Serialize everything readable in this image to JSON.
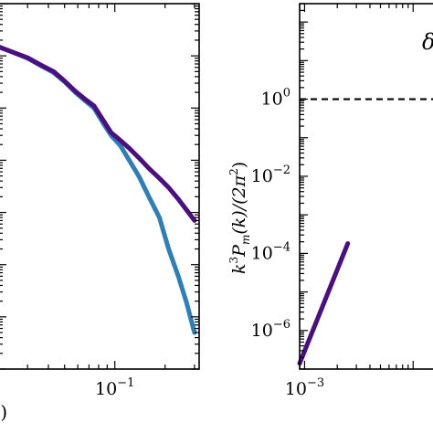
{
  "chart_data": [
    {
      "type": "line",
      "xscale": "log",
      "yscale": "log",
      "xlim": [
        0.02,
        0.32
      ],
      "ylim": [
        0.01,
        100000
      ],
      "x_tick_labels": [
        {
          "value": 0.1,
          "base": "10",
          "exp": "−1"
        }
      ],
      "xlabel_fragment": "·)",
      "grid": false,
      "series": [
        {
          "color": "#2e7fb8",
          "x": [
            0.02,
            0.024,
            0.03,
            0.036,
            0.043,
            0.05,
            0.058,
            0.066,
            0.075,
            0.085,
            0.095,
            0.108,
            0.122,
            0.14,
            0.16,
            0.185,
            0.21,
            0.24,
            0.27,
            0.3
          ],
          "y": [
            15000,
            12000,
            9000,
            6500,
            4800,
            3200,
            2000,
            1400,
            1000,
            520,
            300,
            190,
            100,
            48,
            20,
            8,
            2,
            0.6,
            0.18,
            0.05
          ]
        },
        {
          "color": "#4b0f82",
          "x": [
            0.02,
            0.024,
            0.03,
            0.036,
            0.043,
            0.05,
            0.058,
            0.066,
            0.075,
            0.085,
            0.095,
            0.108,
            0.122,
            0.14,
            0.16,
            0.185,
            0.21,
            0.24,
            0.27,
            0.3
          ],
          "y": [
            15000,
            12000,
            9200,
            6700,
            5000,
            3300,
            2100,
            1500,
            1100,
            590,
            340,
            240,
            170,
            110,
            70,
            45,
            30,
            18,
            11,
            7
          ]
        }
      ]
    },
    {
      "type": "line",
      "xscale": "log",
      "yscale": "log",
      "xlim": [
        0.0009,
        0.02
      ],
      "ylim": [
        1e-07,
        300
      ],
      "ylabel": "k^3 P_m(k)/(2π^2)",
      "ylabel_parts": {
        "k": "k",
        "k_exp": "3",
        "P": "P",
        "sub": "m",
        "paren_k": "(k)/(2π",
        "pi_exp": "2",
        "close": ")"
      },
      "y_tick_labels": [
        {
          "value": 1,
          "base": "10",
          "exp": "0"
        },
        {
          "value": 0.01,
          "base": "10",
          "exp": "−2"
        },
        {
          "value": 0.0001,
          "base": "10",
          "exp": "−4"
        },
        {
          "value": 1e-06,
          "base": "10",
          "exp": "−6"
        }
      ],
      "x_tick_labels": [
        {
          "value": 0.001,
          "base": "10",
          "exp": "−3"
        }
      ],
      "annotation": "δ",
      "reference_line": {
        "y": 1,
        "style": "dashed",
        "color": "#000000"
      },
      "series": [
        {
          "color": "#4b0f82",
          "x": [
            0.0009,
            0.0025
          ],
          "y": [
            1.4e-07,
            0.00018
          ]
        }
      ]
    }
  ]
}
